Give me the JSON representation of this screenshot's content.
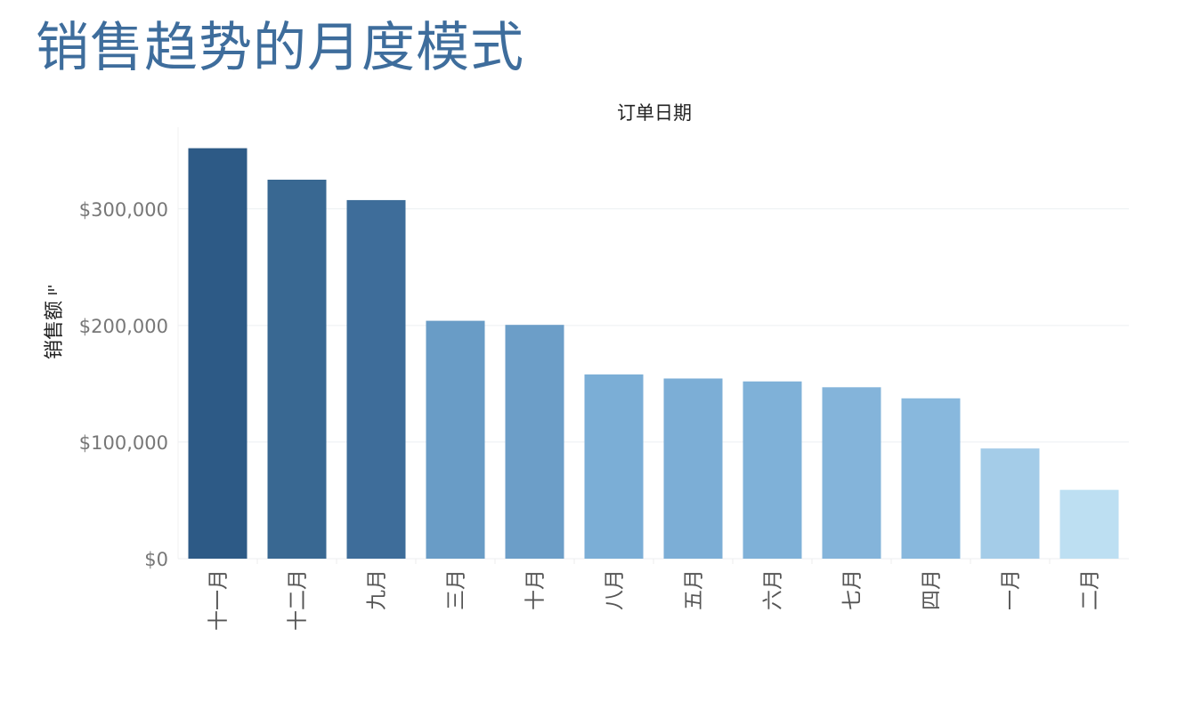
{
  "page": {
    "title": "销售趋势的月度模式"
  },
  "chart_data": {
    "type": "bar",
    "title": "订单日期",
    "ylabel": "销售额",
    "xlabel": "",
    "categories": [
      "十一月",
      "十二月",
      "九月",
      "三月",
      "十月",
      "八月",
      "五月",
      "六月",
      "七月",
      "四月",
      "一月",
      "二月"
    ],
    "values": [
      352000,
      325000,
      307500,
      204000,
      200500,
      158000,
      154500,
      152000,
      147000,
      137500,
      94500,
      59000
    ],
    "ylim": [
      0,
      370000
    ],
    "yticks": [
      {
        "value": 0,
        "label": "$0"
      },
      {
        "value": 100000,
        "label": "$100,000"
      },
      {
        "value": 200000,
        "label": "$200,000"
      },
      {
        "value": 300000,
        "label": "$300,000"
      }
    ],
    "grid": true,
    "legend": "none",
    "sort_icon": "sort-descending-icon",
    "bar_colors": [
      "#2d5a86",
      "#396892",
      "#3e6d9a",
      "#699cc6",
      "#6c9ec8",
      "#7baed6",
      "#7caed6",
      "#7fb1d8",
      "#84b4da",
      "#88b8dd",
      "#a4cce8",
      "#bddff2"
    ],
    "gridline_color": "#eceff2",
    "tick_label_color": "#777777"
  }
}
